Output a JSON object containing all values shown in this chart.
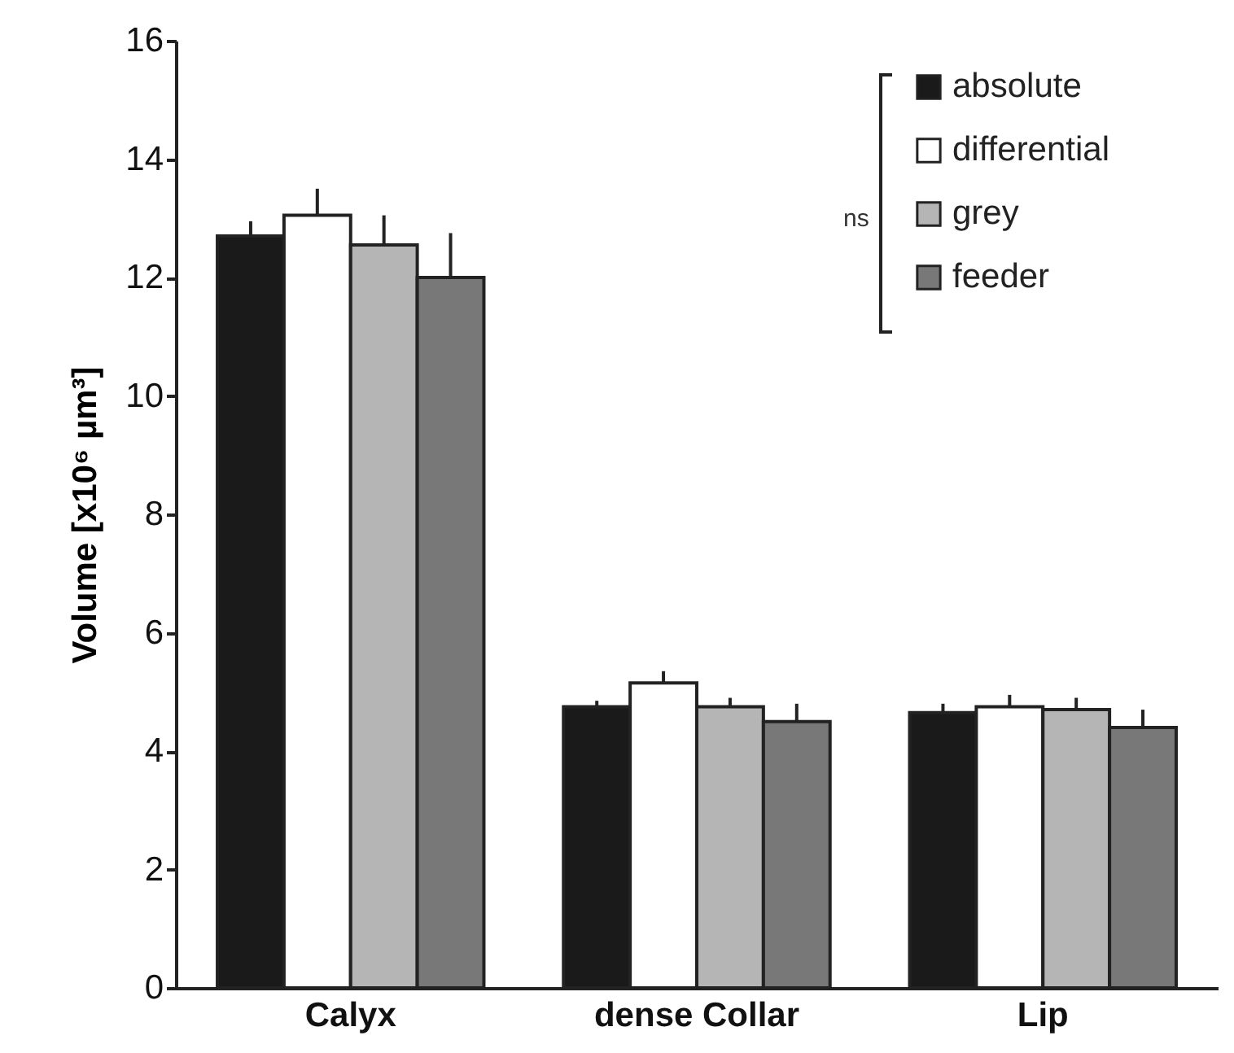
{
  "chart_data": {
    "type": "bar",
    "ylabel": "Volume [x10⁶ µm³]",
    "categories": [
      "Calyx",
      "dense Collar",
      "Lip"
    ],
    "series": [
      {
        "name": "absolute",
        "color": "#1a1a1a",
        "values": [
          12.7,
          4.75,
          4.65
        ],
        "errors": [
          0.25,
          0.1,
          0.15
        ]
      },
      {
        "name": "differential",
        "color": "#ffffff",
        "values": [
          13.05,
          5.15,
          4.75
        ],
        "errors": [
          0.45,
          0.2,
          0.2
        ]
      },
      {
        "name": "grey",
        "color": "#b5b5b5",
        "values": [
          12.55,
          4.75,
          4.7
        ],
        "errors": [
          0.5,
          0.15,
          0.2
        ]
      },
      {
        "name": "feeder",
        "color": "#787878",
        "values": [
          12.0,
          4.5,
          4.4
        ],
        "errors": [
          0.75,
          0.3,
          0.3
        ]
      }
    ],
    "ylim": [
      0,
      16
    ],
    "yticks": [
      0,
      2,
      4,
      6,
      8,
      10,
      12,
      14,
      16
    ],
    "grid": false,
    "legend": "top right",
    "annotations": [
      "ns"
    ]
  }
}
